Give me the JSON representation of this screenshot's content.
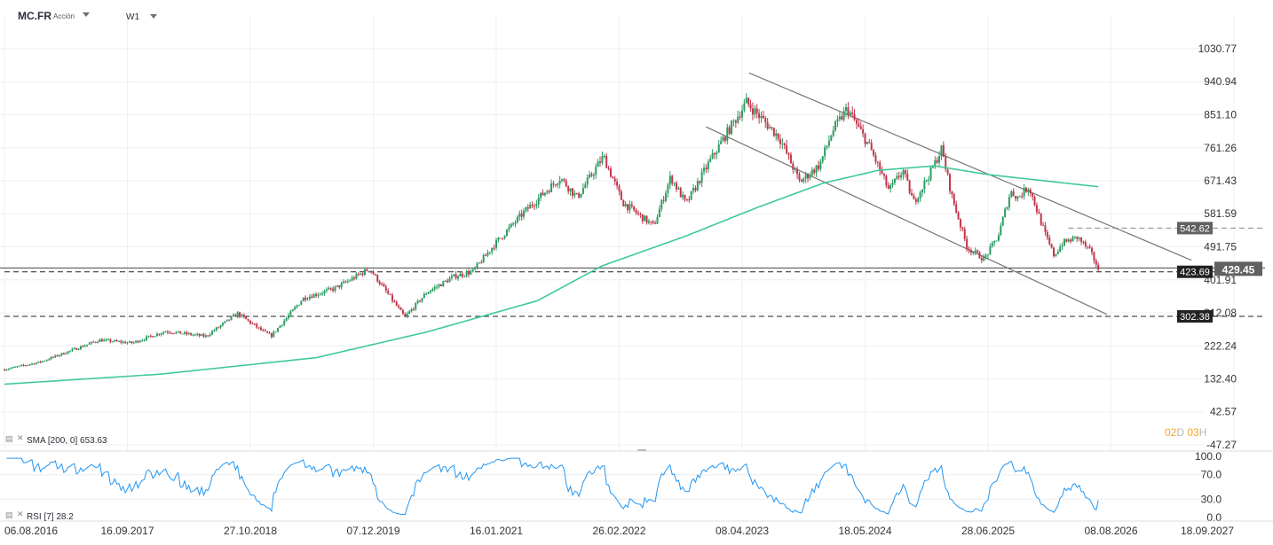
{
  "header": {
    "symbol": "MC.FR",
    "symbol_type": "Acción",
    "timeframe": "W1"
  },
  "indicators": {
    "sma_label": "SMA [200, 0] 653.63",
    "rsi_label": "RSI [7] 28.2"
  },
  "countdown": {
    "days": "02",
    "days_unit": "D",
    "hours": "03",
    "hours_unit": "H"
  },
  "colors": {
    "bull": "#2b9c62",
    "bear": "#c2364b",
    "sma": "#3ec99a",
    "rsi": "#2196f3",
    "price_label_bg": "#616161",
    "level_label_bg": "#222222",
    "trendline": "#777777"
  },
  "chart_data": {
    "type": "candlestick",
    "x_start": "06.08.2016",
    "x_end": "18.09.2027",
    "x_tick_labels": [
      "06.08.2016",
      "16.09.2017",
      "27.10.2018",
      "07.12.2019",
      "16.01.2021",
      "26.02.2022",
      "08.04.2023",
      "18.05.2024",
      "28.06.2025",
      "08.08.2026",
      "18.09.2027"
    ],
    "price_axis": {
      "ticks": [
        "1030.77",
        "940.94",
        "851.10",
        "761.26",
        "671.43",
        "581.59",
        "491.75",
        "401.91",
        "312.08",
        "222.24",
        "132.40",
        "42.57",
        "-47.27"
      ],
      "range": [
        -47.27,
        1030.77
      ]
    },
    "price_path": [
      [
        "2016-08-06",
        158
      ],
      [
        "2016-12-01",
        178
      ],
      [
        "2017-04-01",
        215
      ],
      [
        "2017-06-15",
        238
      ],
      [
        "2017-10-01",
        230
      ],
      [
        "2018-01-20",
        262
      ],
      [
        "2018-06-01",
        248
      ],
      [
        "2018-09-15",
        310
      ],
      [
        "2018-12-10",
        260
      ],
      [
        "2019-01-05",
        250
      ],
      [
        "2019-04-20",
        352
      ],
      [
        "2019-08-01",
        378
      ],
      [
        "2019-11-25",
        432
      ],
      [
        "2020-03-20",
        300
      ],
      [
        "2020-06-01",
        368
      ],
      [
        "2020-09-01",
        412
      ],
      [
        "2020-10-30",
        424
      ],
      [
        "2021-01-10",
        498
      ],
      [
        "2021-04-20",
        588
      ],
      [
        "2021-08-15",
        680
      ],
      [
        "2021-10-10",
        626
      ],
      [
        "2022-01-05",
        738
      ],
      [
        "2022-03-10",
        612
      ],
      [
        "2022-06-20",
        548
      ],
      [
        "2022-08-15",
        682
      ],
      [
        "2022-10-05",
        608
      ],
      [
        "2022-12-20",
        722
      ],
      [
        "2023-02-20",
        806
      ],
      [
        "2023-04-22",
        885
      ],
      [
        "2023-08-10",
        788
      ],
      [
        "2023-10-15",
        668
      ],
      [
        "2023-12-20",
        715
      ],
      [
        "2024-02-01",
        808
      ],
      [
        "2024-03-20",
        868
      ],
      [
        "2024-06-01",
        765
      ],
      [
        "2024-08-05",
        645
      ],
      [
        "2024-09-20",
        700
      ],
      [
        "2024-10-25",
        612
      ],
      [
        "2024-12-25",
        702
      ],
      [
        "2025-01-25",
        758
      ],
      [
        "2025-03-01",
        628
      ],
      [
        "2025-04-20",
        490
      ],
      [
        "2025-06-15",
        458
      ],
      [
        "2025-08-01",
        522
      ],
      [
        "2025-09-10",
        642
      ],
      [
        "2025-10-05",
        626
      ],
      [
        "2025-11-10",
        656
      ],
      [
        "2026-01-05",
        520
      ],
      [
        "2026-02-01",
        468
      ],
      [
        "2026-03-01",
        502
      ],
      [
        "2026-04-20",
        518
      ],
      [
        "2026-06-01",
        478
      ],
      [
        "2026-06-30",
        429
      ]
    ],
    "last_price": "429.45",
    "sma200": {
      "name": "SMA [200, 0]",
      "last": "653.63",
      "path": [
        [
          "2016-08-06",
          118
        ],
        [
          "2018-01-01",
          145
        ],
        [
          "2019-06-01",
          190
        ],
        [
          "2020-06-01",
          260
        ],
        [
          "2021-06-01",
          345
        ],
        [
          "2022-01-01",
          440
        ],
        [
          "2022-10-01",
          520
        ],
        [
          "2023-06-01",
          600
        ],
        [
          "2024-01-01",
          665
        ],
        [
          "2024-07-01",
          700
        ],
        [
          "2025-01-01",
          712
        ],
        [
          "2025-07-01",
          688
        ],
        [
          "2026-06-30",
          655
        ]
      ]
    },
    "rsi": {
      "name": "RSI [7]",
      "last": "28.2",
      "range": [
        0,
        100
      ],
      "ticks": [
        "100.0",
        "70.0",
        "30.0",
        "0.0"
      ]
    },
    "levels": [
      {
        "value": 542.62,
        "label": "542.62",
        "style": "dashed",
        "from": "2026-03-20"
      },
      {
        "value": 423.69,
        "label": "423.69",
        "style": "dashed",
        "from": "2016-08-06"
      },
      {
        "value": 302.38,
        "label": "302.38",
        "style": "dashed",
        "from": "2016-08-06"
      }
    ],
    "trendlines": [
      {
        "from": [
          "2023-05-01",
          965
        ],
        "to": [
          "2027-05-01",
          455
        ]
      },
      {
        "from": [
          "2022-12-10",
          818
        ],
        "to": [
          "2026-07-25",
          308
        ]
      }
    ]
  }
}
